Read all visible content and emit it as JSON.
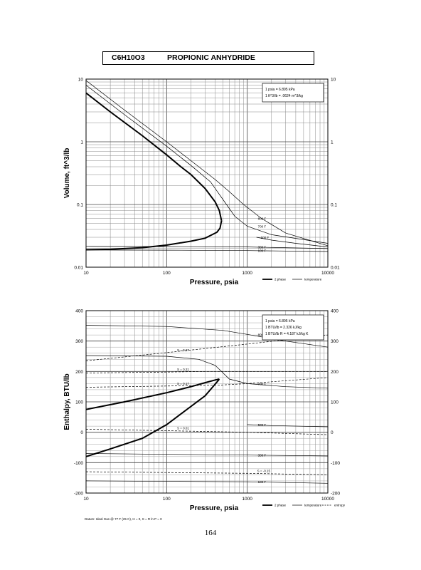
{
  "header": {
    "formula": "C6H10O3",
    "compound_name": "PROPIONIC ANHYDRIDE"
  },
  "page_number": "164",
  "chart_data": [
    {
      "type": "line",
      "x_scale": "log",
      "y_scale": "log",
      "xlabel": "Pressure,  psia",
      "ylabel": "Volume, ft^3/lb",
      "xlim": [
        10,
        10000
      ],
      "ylim": [
        0.01,
        10
      ],
      "x_tick_labels": [
        "10",
        "100",
        "1000",
        "10000"
      ],
      "y_tick_labels": [
        "0.01",
        "0.1",
        "1",
        "10"
      ],
      "grid": true,
      "conversion_box": [
        "1 psia  =  6.895 kPa",
        "1 ft^3/lb  =  .0624 m^3/kg"
      ],
      "legend": [
        "2 phase",
        "temperature"
      ],
      "legend_placement": "bottom-right",
      "two_phase": {
        "vapor": [
          [
            10,
            6
          ],
          [
            20,
            3
          ],
          [
            50,
            1.25
          ],
          [
            100,
            0.62
          ],
          [
            150,
            0.4
          ],
          [
            200,
            0.3
          ],
          [
            300,
            0.18
          ],
          [
            400,
            0.11
          ],
          [
            450,
            0.08
          ],
          [
            480,
            0.055
          ]
        ],
        "liquid": [
          [
            480,
            0.055
          ],
          [
            460,
            0.042
          ],
          [
            420,
            0.036
          ],
          [
            300,
            0.029
          ],
          [
            200,
            0.026
          ],
          [
            100,
            0.0225
          ],
          [
            50,
            0.0205
          ],
          [
            20,
            0.0193
          ],
          [
            10,
            0.019
          ]
        ]
      },
      "isotherms": [
        {
          "name": "800 F",
          "points": [
            [
              10,
              9.5
            ],
            [
              30,
              3.2
            ],
            [
              100,
              1.0
            ],
            [
              200,
              0.5
            ],
            [
              400,
              0.25
            ],
            [
              600,
              0.16
            ],
            [
              900,
              0.1
            ],
            [
              1500,
              0.06
            ],
            [
              3000,
              0.035
            ],
            [
              10000,
              0.022
            ]
          ]
        },
        {
          "name": "700 F",
          "points": [
            [
              10,
              8.0
            ],
            [
              30,
              2.7
            ],
            [
              100,
              0.85
            ],
            [
              200,
              0.42
            ],
            [
              350,
              0.23
            ],
            [
              500,
              0.12
            ],
            [
              700,
              0.065
            ],
            [
              1000,
              0.045
            ],
            [
              2000,
              0.033
            ],
            [
              10000,
              0.024
            ]
          ]
        },
        {
          "name": "500 F",
          "points": [
            [
              1300,
              0.03
            ],
            [
              2000,
              0.027
            ],
            [
              4000,
              0.024
            ],
            [
              10000,
              0.021
            ]
          ]
        },
        {
          "name": "300 F",
          "points": [
            [
              10,
              0.0215
            ],
            [
              100,
              0.0213
            ],
            [
              1000,
              0.021
            ],
            [
              10000,
              0.0198
            ]
          ]
        },
        {
          "name": "100 F",
          "points": [
            [
              10,
              0.0188
            ],
            [
              100,
              0.0187
            ],
            [
              1000,
              0.0184
            ],
            [
              10000,
              0.0178
            ]
          ]
        }
      ]
    },
    {
      "type": "line",
      "x_scale": "log",
      "xlabel": "Pressure,  psia",
      "ylabel": "Enthalpy, BTU/lb",
      "xlim": [
        10,
        10000
      ],
      "ylim": [
        -200,
        400
      ],
      "x_tick_labels": [
        "10",
        "100",
        "1000",
        "10000"
      ],
      "y_tick_labels": [
        "400",
        "300",
        "200",
        "100",
        "0",
        "-100",
        "-200"
      ],
      "grid": true,
      "conversion_box": [
        "1 psia  =  6.895 kPa",
        "1 BTU/lb  =  2.326 kJ/kg",
        "1 BTU/lb R  =  4.187 kJ/kg K"
      ],
      "legend": [
        "2 phase",
        "temperature",
        "entropy"
      ],
      "legend_placement": "bottom-right",
      "footnote": "Datum: Ideal Gas @ 77 F (25 C), H = 0, S = R ln P = 0",
      "two_phase": {
        "vapor": [
          [
            10,
            75
          ],
          [
            30,
            100
          ],
          [
            100,
            130
          ],
          [
            200,
            150
          ],
          [
            300,
            163
          ],
          [
            400,
            172
          ],
          [
            450,
            175
          ]
        ],
        "liquid": [
          [
            450,
            175
          ],
          [
            430,
            168
          ],
          [
            300,
            120
          ],
          [
            100,
            25
          ],
          [
            50,
            -20
          ],
          [
            20,
            -55
          ],
          [
            10,
            -80
          ]
        ]
      },
      "isotherms": [
        {
          "name": "800 F",
          "points": [
            [
              10,
              352
            ],
            [
              100,
              348
            ],
            [
              500,
              335
            ],
            [
              1000,
              322
            ],
            [
              3000,
              300
            ],
            [
              10000,
              280
            ]
          ]
        },
        {
          "name": "700 F",
          "points": [
            [
              10,
              252
            ],
            [
              100,
              250
            ],
            [
              250,
              240
            ],
            [
              400,
              220
            ],
            [
              600,
              175
            ],
            [
              1000,
              160
            ],
            [
              3000,
              150
            ],
            [
              10000,
              145
            ]
          ]
        },
        {
          "name": "500 F",
          "points": [
            [
              1000,
              25
            ],
            [
              2000,
              22
            ],
            [
              10000,
              18
            ]
          ]
        },
        {
          "name": "300 F",
          "points": [
            [
              10,
              -70
            ],
            [
              1000,
              -75
            ],
            [
              10000,
              -78
            ]
          ]
        },
        {
          "name": "100 F",
          "points": [
            [
              10,
              -160
            ],
            [
              1000,
              -163
            ],
            [
              10000,
              -168
            ]
          ]
        }
      ],
      "entropy_lines": [
        {
          "name": "S = 0.27",
          "points": [
            [
              10,
              235
            ],
            [
              100,
              262
            ],
            [
              1000,
              290
            ],
            [
              10000,
              320
            ]
          ]
        },
        {
          "name": "S = 0.21",
          "points": [
            [
              10,
              195
            ],
            [
              100,
              198
            ],
            [
              300,
              200
            ],
            [
              1000,
              200
            ],
            [
              10000,
              200
            ]
          ]
        },
        {
          "name": "S = 0.17",
          "points": [
            [
              10,
              148
            ],
            [
              100,
              152
            ],
            [
              450,
              155
            ],
            [
              1000,
              160
            ],
            [
              10000,
              180
            ]
          ]
        },
        {
          "name": "S = 0.01",
          "points": [
            [
              10,
              10
            ],
            [
              100,
              5
            ],
            [
              1000,
              0
            ],
            [
              10000,
              -8
            ]
          ]
        },
        {
          "name": "S = -0.15",
          "points": [
            [
              10,
              -130
            ],
            [
              1000,
              -135
            ],
            [
              10000,
              -140
            ]
          ]
        }
      ]
    }
  ]
}
